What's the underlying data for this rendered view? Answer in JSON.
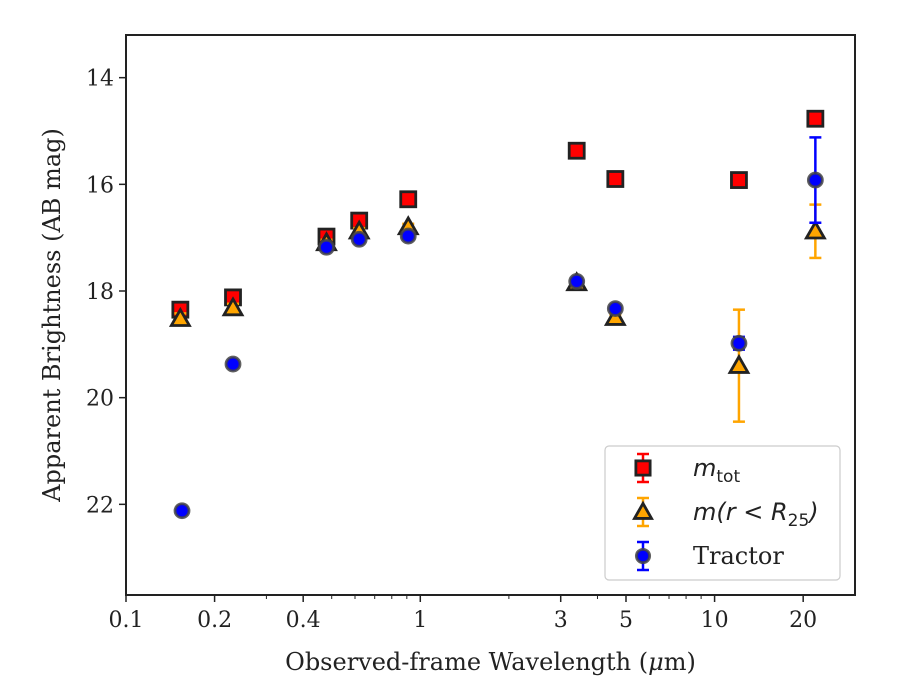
{
  "chart_data": {
    "type": "scatter",
    "xlabel_prefix": "Observed-frame Wavelength (",
    "xlabel_mu": "μ",
    "xlabel_suffix": "m)",
    "ylabel": "Apparent Brightness (AB mag)",
    "x_scale": "log",
    "xlim": [
      0.1,
      30
    ],
    "ylim": [
      23.7,
      13.2
    ],
    "y_inverted": true,
    "x_ticks": [
      0.1,
      0.2,
      0.4,
      1,
      3,
      5,
      10,
      20
    ],
    "x_tick_labels": [
      "0.1",
      "0.2",
      "0.4",
      "1",
      "3",
      "5",
      "10",
      "20"
    ],
    "y_ticks": [
      14,
      16,
      18,
      20,
      22
    ],
    "y_tick_labels": [
      "14",
      "16",
      "18",
      "20",
      "22"
    ],
    "grid": false,
    "legend_position": "lower right",
    "series": [
      {
        "key": "mtot",
        "legend": {
          "main": "m",
          "sub": "tot"
        },
        "marker": "square",
        "color": "#ff0000",
        "edge": "#222222",
        "points": [
          {
            "x": 0.153,
            "y": 18.35,
            "err": 0.1
          },
          {
            "x": 0.231,
            "y": 18.12,
            "err": 0.08
          },
          {
            "x": 0.48,
            "y": 16.98,
            "err": 0.06
          },
          {
            "x": 0.62,
            "y": 16.68,
            "err": 0.06
          },
          {
            "x": 0.91,
            "y": 16.28,
            "err": 0.06
          },
          {
            "x": 3.4,
            "y": 15.37,
            "err": 0.05
          },
          {
            "x": 4.6,
            "y": 15.9,
            "err": 0.05
          },
          {
            "x": 12.1,
            "y": 15.92,
            "err": 0.06
          },
          {
            "x": 22.0,
            "y": 14.77,
            "err": 0.05
          }
        ]
      },
      {
        "key": "mr25",
        "legend": {
          "main": "m(r < R",
          "sub": "25",
          "close": ")"
        },
        "marker": "triangle",
        "color": "#ffa500",
        "edge": "#222222",
        "points": [
          {
            "x": 0.153,
            "y": 18.52,
            "err": 0.1
          },
          {
            "x": 0.231,
            "y": 18.32,
            "err": 0.08
          },
          {
            "x": 0.48,
            "y": 17.1,
            "err": 0.06
          },
          {
            "x": 0.62,
            "y": 16.88,
            "err": 0.06
          },
          {
            "x": 0.91,
            "y": 16.8,
            "err": 0.06
          },
          {
            "x": 3.4,
            "y": 17.85,
            "err": 0.06
          },
          {
            "x": 4.6,
            "y": 18.5,
            "err": 0.06
          },
          {
            "x": 12.1,
            "y": 19.4,
            "err": 1.05
          },
          {
            "x": 22.0,
            "y": 16.88,
            "err": 0.5
          }
        ]
      },
      {
        "key": "tractor",
        "legend": {
          "main": "Tractor"
        },
        "marker": "circle",
        "color": "#0000ff",
        "edge": "#444444",
        "points": [
          {
            "x": 0.155,
            "y": 22.12,
            "err": 0.05
          },
          {
            "x": 0.231,
            "y": 19.37,
            "err": 0.05
          },
          {
            "x": 0.48,
            "y": 17.18,
            "err": 0.05
          },
          {
            "x": 0.62,
            "y": 17.03,
            "err": 0.05
          },
          {
            "x": 0.91,
            "y": 16.97,
            "err": 0.05
          },
          {
            "x": 3.4,
            "y": 17.82,
            "err": 0.05
          },
          {
            "x": 4.6,
            "y": 18.33,
            "err": 0.05
          },
          {
            "x": 12.1,
            "y": 18.98,
            "err": 0.12
          },
          {
            "x": 22.0,
            "y": 15.92,
            "err": 0.8
          }
        ]
      }
    ]
  }
}
